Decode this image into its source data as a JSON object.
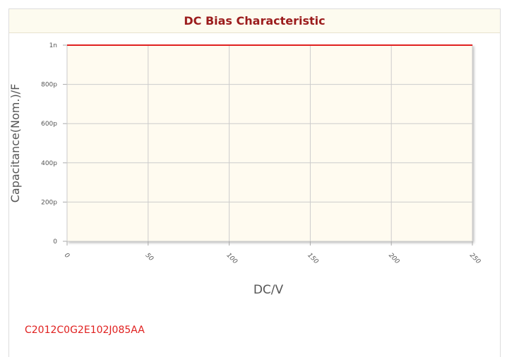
{
  "chart_data": {
    "type": "line",
    "title": "DC Bias Characteristic",
    "x_label": "DC/V",
    "y_label": "Capacitance(Nom.)/F",
    "xlim": [
      0,
      250
    ],
    "xticks": [
      0,
      50,
      100,
      150,
      200,
      250
    ],
    "ylim": [
      0,
      1e-09
    ],
    "yticks": [
      0,
      {
        "value": 2e-10,
        "label": "200p"
      },
      {
        "value": 4e-10,
        "label": "400p"
      },
      {
        "value": 6e-10,
        "label": "600p"
      },
      {
        "value": 8e-10,
        "label": "800p"
      },
      {
        "value": 1e-09,
        "label": "1n"
      }
    ],
    "grid": true,
    "x": [
      0,
      250
    ],
    "series": [
      {
        "name": "C2012C0G2E102J085AA",
        "color": "#e0201f",
        "values": [
          1e-09,
          1e-09
        ]
      }
    ]
  }
}
